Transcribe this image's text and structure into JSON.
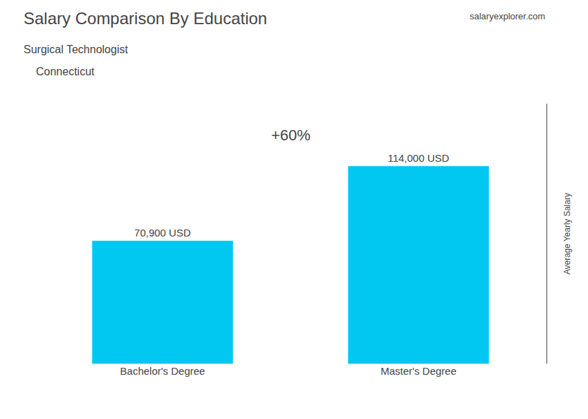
{
  "chart_data": {
    "type": "bar",
    "title": "Salary Comparison By Education",
    "subtitle": "Surgical Technologist",
    "ylabel": "Average Yearly Salary",
    "annotations": [
      "Connecticut",
      "+60%",
      "salaryexplorer.com"
    ],
    "categories": [
      "Bachelor's Degree",
      "Master's Degree"
    ],
    "values": [
      70900,
      114000
    ],
    "value_labels": [
      "70,900 USD",
      "114,000 USD"
    ],
    "color": "#00C8F0",
    "ylim": [
      0,
      150000
    ],
    "data_labels": true,
    "tick_labels": "x",
    "grid": false
  }
}
